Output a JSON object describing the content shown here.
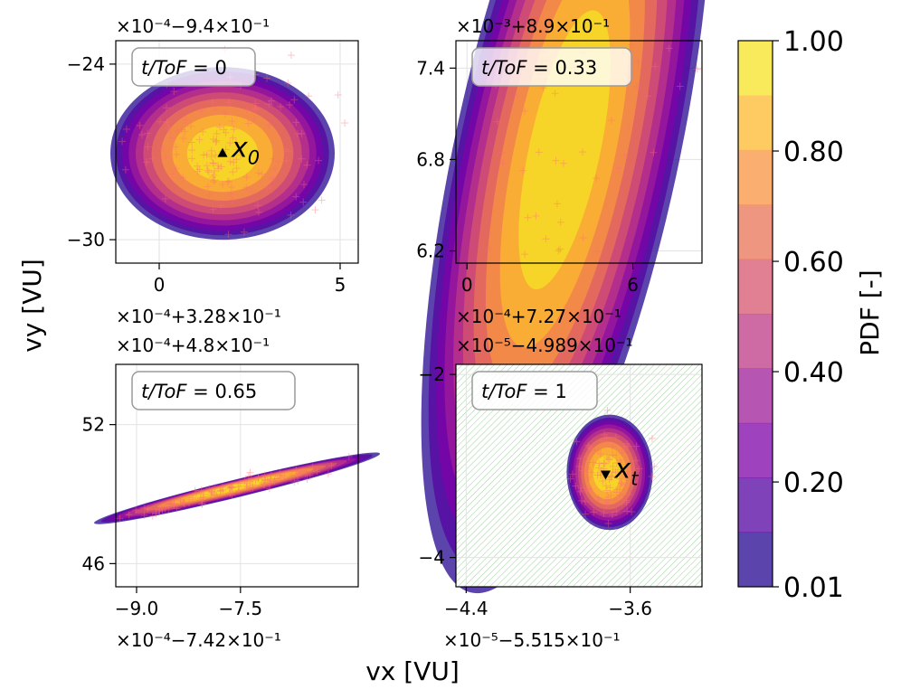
{
  "figure": {
    "xlabel": "vx [VU]",
    "ylabel": "vy [VU]"
  },
  "chart_data": [
    {
      "type": "contour",
      "panel": "top-left",
      "annotation": "t/ToF = 0",
      "annotation_parts": {
        "var": "t/ToF",
        "eq": " = ",
        "val": "0"
      },
      "marker_label": "x",
      "marker_sub": "0",
      "marker_shape": "triangle-up",
      "offset_top": "×10⁻⁴−9.4×10⁻¹",
      "offset_bottom": "",
      "xlim": [
        -1.2,
        5.5
      ],
      "ylim": [
        -30.8,
        -23.2
      ],
      "xticks": [
        0,
        5
      ],
      "yticks": [
        -24,
        -30
      ],
      "xtick_labels": [
        "0",
        "5"
      ],
      "ytick_labels": [
        "−24",
        "−30"
      ],
      "ellipse": {
        "cx": 1.75,
        "cy": -27.05,
        "rx": 3.1,
        "ry": 2.95,
        "angle": 0
      },
      "peak": {
        "x": 1.75,
        "y": -27.05
      },
      "hatched_background": false,
      "samples": 150
    },
    {
      "type": "contour",
      "panel": "top-right",
      "annotation": "t/ToF = 0.33",
      "annotation_parts": {
        "var": "t/ToF",
        "eq": " = ",
        "val": "0.33"
      },
      "marker_label": "",
      "marker_sub": "",
      "marker_shape": "",
      "offset_top": "×10⁻³+8.9×10⁻¹",
      "offset_bottom": "",
      "xlim": [
        -0.4,
        8.5
      ],
      "ylim": [
        6.12,
        7.58
      ],
      "xticks": [
        0,
        6
      ],
      "yticks": [
        7.4,
        6.8,
        6.2
      ],
      "xtick_labels": [
        "0",
        "6"
      ],
      "ytick_labels": [
        "7.4",
        "6.8",
        "6.2"
      ],
      "ellipse": {
        "cx": 3.6,
        "cy": 6.85,
        "rx": 4.5,
        "ry": 0.95,
        "angle": 40
      },
      "peak": {
        "x": 3.5,
        "y": 6.87
      },
      "hatched_background": false,
      "samples": 120
    },
    {
      "type": "contour",
      "panel": "bottom-left",
      "annotation": "t/ToF = 0.65",
      "annotation_parts": {
        "var": "t/ToF",
        "eq": " = ",
        "val": "0.65"
      },
      "marker_label": "",
      "marker_sub": "",
      "marker_shape": "",
      "offset_top_lines": [
        "×10⁻⁴+3.28×10⁻¹",
        "×10⁻⁴+4.8×10⁻¹"
      ],
      "offset_bottom": "×10⁻⁴−7.42×10⁻¹",
      "xlim": [
        -9.3,
        -5.8
      ],
      "ylim": [
        45.0,
        54.6
      ],
      "xticks": [
        -9.0,
        -7.5
      ],
      "yticks": [
        52,
        46
      ],
      "xtick_labels": [
        "−9.0",
        "−7.5"
      ],
      "ytick_labels": [
        "52",
        "46"
      ],
      "ellipse": {
        "cx": -7.55,
        "cy": 49.25,
        "rx": 2.55,
        "ry": 0.2,
        "angle": 36
      },
      "peak": {
        "x": -7.6,
        "y": 49.3
      },
      "hatched_background": false,
      "samples": 120
    },
    {
      "type": "contour",
      "panel": "bottom-right",
      "annotation": "t/ToF = 1",
      "annotation_parts": {
        "var": "t/ToF",
        "eq": " = ",
        "val": "1"
      },
      "marker_label": "x",
      "marker_sub": "t",
      "marker_shape": "triangle-down",
      "offset_top_lines": [
        "×10⁻⁴+7.27×10⁻¹",
        "×10⁻⁵−4.989×10⁻¹"
      ],
      "offset_bottom": "×10⁻⁵−5.515×10⁻¹",
      "xlim": [
        -4.45,
        -3.25
      ],
      "ylim": [
        -4.32,
        -1.89
      ],
      "xticks": [
        -4.4,
        -3.6
      ],
      "yticks": [
        -2,
        -4
      ],
      "xtick_labels": [
        "−4.4",
        "−3.6"
      ],
      "ytick_labels": [
        "−2",
        "−4"
      ],
      "ellipse": {
        "cx": -3.7,
        "cy": -3.07,
        "rx": 0.21,
        "ry": 0.63,
        "angle": 0
      },
      "peak": {
        "x": -3.72,
        "y": -3.09
      },
      "hatched_background": true,
      "samples": 110
    }
  ],
  "colorbar": {
    "label": "PDF [-]",
    "ticks": [
      1.0,
      0.8,
      0.6,
      0.4,
      0.2,
      0.01
    ],
    "tick_labels": [
      "1.00",
      "0.80",
      "0.60",
      "0.40",
      "0.20",
      "0.01"
    ],
    "min": 0.01,
    "max": 1.0,
    "levels": 10,
    "colormap": "plasma",
    "alpha": 0.75
  },
  "colors": {
    "sample_marker": "#ff6a7a",
    "hatch": "#2ca02c",
    "grid": "#e2e2e2",
    "annotation_box_edge": "#9a9a9a"
  }
}
